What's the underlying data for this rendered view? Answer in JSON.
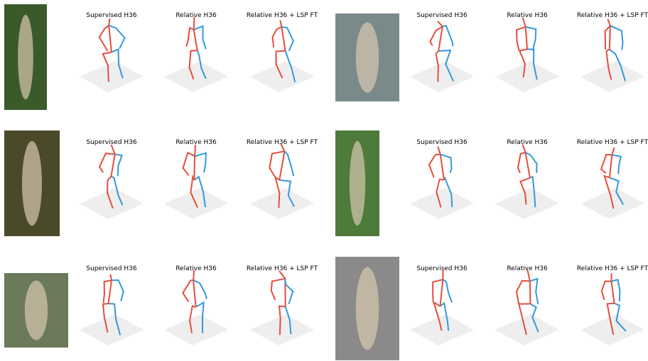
{
  "examples": [
    {
      "panels": [
        "Supervised H36",
        "Relative H36",
        "Relative H36 + LSP FT"
      ]
    },
    {
      "panels": [
        "Supervised H36",
        "Relative H36",
        "Relative H36 + LSP FT"
      ]
    },
    {
      "panels": [
        "Supervised H36",
        "Relative H36",
        "Relative H36 + LSP FT"
      ]
    },
    {
      "panels": [
        "Supervised H36",
        "Relative H36",
        "Relative H36 + LSP FT"
      ]
    },
    {
      "panels": [
        "Supervised H36",
        "Relative H36",
        "Relative H36 + LSP FT"
      ]
    },
    {
      "panels": [
        "Supervised H36",
        "Relative H36",
        "Relative H36 + LSP FT"
      ]
    }
  ]
}
